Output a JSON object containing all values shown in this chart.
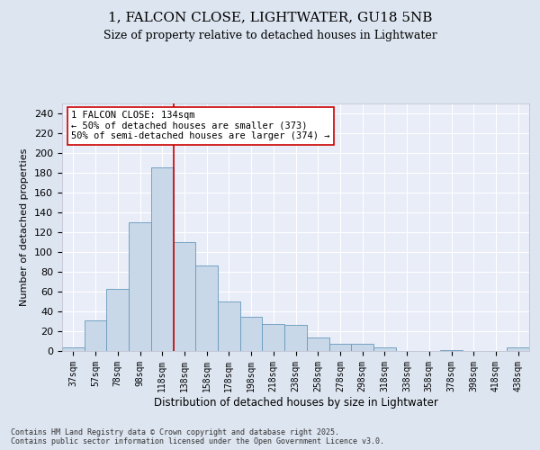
{
  "title1": "1, FALCON CLOSE, LIGHTWATER, GU18 5NB",
  "title2": "Size of property relative to detached houses in Lightwater",
  "xlabel": "Distribution of detached houses by size in Lightwater",
  "ylabel": "Number of detached properties",
  "bar_labels": [
    "37sqm",
    "57sqm",
    "78sqm",
    "98sqm",
    "118sqm",
    "138sqm",
    "158sqm",
    "178sqm",
    "198sqm",
    "218sqm",
    "238sqm",
    "258sqm",
    "278sqm",
    "298sqm",
    "318sqm",
    "338sqm",
    "358sqm",
    "378sqm",
    "398sqm",
    "418sqm",
    "438sqm"
  ],
  "bar_values": [
    4,
    31,
    63,
    130,
    185,
    110,
    86,
    50,
    35,
    27,
    26,
    14,
    7,
    7,
    4,
    0,
    0,
    1,
    0,
    0,
    4
  ],
  "bar_color": "#c8d8e8",
  "bar_edge_color": "#6699bb",
  "vline_color": "#cc0000",
  "vline_x": 4.5,
  "annotation_text": "1 FALCON CLOSE: 134sqm\n← 50% of detached houses are smaller (373)\n50% of semi-detached houses are larger (374) →",
  "annotation_box_color": "#ffffff",
  "annotation_box_edge": "#cc0000",
  "background_color": "#dde5f0",
  "plot_bg_color": "#e8edf8",
  "footer": "Contains HM Land Registry data © Crown copyright and database right 2025.\nContains public sector information licensed under the Open Government Licence v3.0.",
  "ylim": [
    0,
    250
  ],
  "yticks": [
    0,
    20,
    40,
    60,
    80,
    100,
    120,
    140,
    160,
    180,
    200,
    220,
    240
  ]
}
